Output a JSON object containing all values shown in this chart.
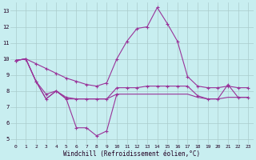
{
  "xlabel": "Windchill (Refroidissement éolien,°C)",
  "bg_color": "#c8eef0",
  "grid_color": "#aacccc",
  "line_color": "#993399",
  "xlim": [
    -0.5,
    23.5
  ],
  "ylim": [
    4.7,
    13.5
  ],
  "yticks": [
    5,
    6,
    7,
    8,
    9,
    10,
    11,
    12,
    13
  ],
  "xticks": [
    0,
    1,
    2,
    3,
    4,
    5,
    6,
    7,
    8,
    9,
    10,
    11,
    12,
    13,
    14,
    15,
    16,
    17,
    18,
    19,
    20,
    21,
    22,
    23
  ],
  "line1_x": [
    0,
    1,
    2,
    3,
    4,
    5,
    6,
    7,
    8,
    9,
    10,
    11,
    12,
    13,
    14,
    15,
    16,
    17,
    18,
    19,
    20,
    21,
    22,
    23
  ],
  "line1_y": [
    9.9,
    10.0,
    9.7,
    9.4,
    9.1,
    8.8,
    8.6,
    8.4,
    8.3,
    8.5,
    10.0,
    11.1,
    11.9,
    12.0,
    13.2,
    12.2,
    11.1,
    8.9,
    8.3,
    8.2,
    8.2,
    8.3,
    8.2,
    8.2
  ],
  "line2_x": [
    0,
    1,
    2,
    3,
    4,
    5,
    6,
    7,
    8,
    9,
    10,
    11,
    12,
    13,
    14,
    15,
    16,
    17,
    18,
    19,
    20,
    21,
    22,
    23
  ],
  "line2_y": [
    9.9,
    10.0,
    8.6,
    7.8,
    8.0,
    7.6,
    7.5,
    7.5,
    7.5,
    7.5,
    8.2,
    8.2,
    8.2,
    8.3,
    8.3,
    8.3,
    8.3,
    8.3,
    7.7,
    7.5,
    7.5,
    8.4,
    7.6,
    7.6
  ],
  "line3_x": [
    0,
    1,
    2,
    3,
    4,
    5,
    6,
    7,
    8,
    9,
    10,
    11,
    12,
    13,
    14,
    15,
    16,
    17,
    18,
    19,
    20,
    21,
    22,
    23
  ],
  "line3_y": [
    9.9,
    10.0,
    8.6,
    7.5,
    8.0,
    7.5,
    7.5,
    7.5,
    7.5,
    7.5,
    7.8,
    7.8,
    7.8,
    7.8,
    7.8,
    7.8,
    7.8,
    7.8,
    7.6,
    7.5,
    7.5,
    7.6,
    7.6,
    7.6
  ],
  "line4_x": [
    0,
    1,
    2,
    3,
    4,
    5,
    6,
    7,
    8,
    9,
    10
  ],
  "line4_y": [
    9.9,
    10.0,
    8.6,
    7.5,
    8.0,
    7.5,
    5.7,
    5.7,
    5.2,
    5.5,
    7.8
  ]
}
